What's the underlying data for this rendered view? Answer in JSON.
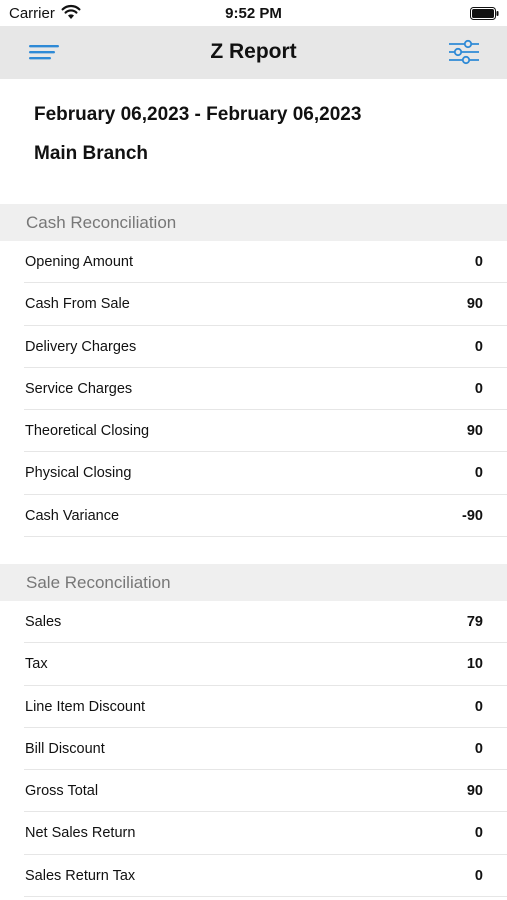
{
  "status_bar": {
    "carrier": "Carrier",
    "time": "9:52 PM",
    "wifi_icon": "wifi-icon",
    "battery_icon": "battery-icon"
  },
  "nav": {
    "title": "Z Report",
    "menu_icon": "hamburger-menu-icon",
    "filter_icon": "filter-sliders-icon",
    "accent_color": "#2f8ad6",
    "bar_color": "#e7e7e7"
  },
  "report": {
    "date_range": "February 06,2023 - February 06,2023",
    "branch": "Main Branch"
  },
  "cash_reconciliation": {
    "title": "Cash Reconciliation",
    "rows": [
      {
        "label": "Opening Amount",
        "value": "0"
      },
      {
        "label": "Cash From Sale",
        "value": "90"
      },
      {
        "label": "Delivery Charges",
        "value": "0"
      },
      {
        "label": "Service Charges",
        "value": "0"
      },
      {
        "label": "Theoretical Closing",
        "value": "90"
      },
      {
        "label": "Physical Closing",
        "value": "0"
      },
      {
        "label": "Cash Variance",
        "value": "-90"
      }
    ]
  },
  "sale_reconciliation": {
    "title": "Sale Reconciliation",
    "rows": [
      {
        "label": "Sales",
        "value": "79"
      },
      {
        "label": "Tax",
        "value": "10"
      },
      {
        "label": "Line Item Discount",
        "value": "0"
      },
      {
        "label": "Bill Discount",
        "value": "0"
      },
      {
        "label": "Gross Total",
        "value": "90"
      },
      {
        "label": "Net Sales Return",
        "value": "0"
      },
      {
        "label": "Sales Return Tax",
        "value": "0"
      }
    ]
  }
}
